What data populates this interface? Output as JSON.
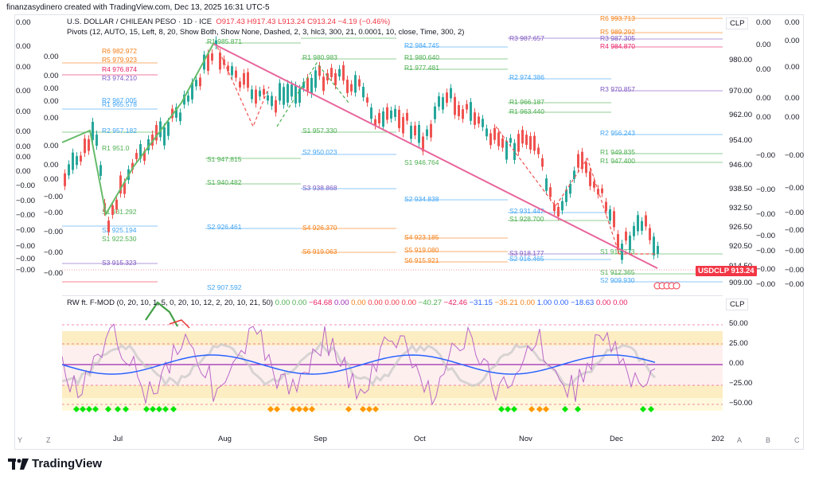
{
  "header": {
    "created": "finanzasydinero created with TradingView.com, Dec 13, 2025 16:31 UTC-5"
  },
  "symbol": {
    "title": "U.S. DOLLAR / CHILEAN PESO · 1D · ICE",
    "ohlc_open": "O917.43",
    "ohlc_high": "H917.43",
    "ohlc_low": "L913.24",
    "ohlc_close": "C913.24",
    "change": "−4.19 (−0.46%)",
    "indicator": "Pivots (12, AUTO, 15, Left, 8, 20, Show Both, Show None, Dashed, 2, 3, hlc3, 300, 21, 0.0001, 10, close, Time, 300, 2)",
    "currency": "CLP",
    "ticker_tag": "USDCLP",
    "last_price": "913.24"
  },
  "price_axis": [
    "980.00",
    "970.00",
    "962.00",
    "954.00",
    "946.00",
    "938.50",
    "932.50",
    "926.50",
    "920.50",
    "914.50",
    "909.00"
  ],
  "osc_axis": [
    "50.00",
    "25.00",
    "0.00",
    "−25.00",
    "−50.00"
  ],
  "osc_currency": "CLP",
  "oscillator": {
    "title": "RW ft. F-MOD (0, 20, 10, 1, 5, 0, 20, 10, 12, 2, 20, 10, 21, 50)",
    "values": [
      "0.00",
      "0.00",
      "−64.68",
      "0.00",
      "0.00",
      "0.00",
      "0.00",
      "0.00",
      "−40.27",
      "−42.46",
      "−31.15",
      "−35.21",
      "0.00",
      "1.00",
      "0.00",
      "−18.63",
      "0.00",
      "0.00"
    ]
  },
  "time_axis": [
    "Jul",
    "Aug",
    "Sep",
    "Oct",
    "Nov",
    "Dec",
    "202"
  ],
  "left_values": [
    "0.00",
    "0.00",
    "0.00",
    "0.00",
    "0.00",
    "0.00",
    "0.00",
    "0.00",
    "0.00",
    "−0.00",
    "−0.00",
    "−0.00",
    "−0.00",
    "−0.00",
    "−0.00",
    "−0.00"
  ],
  "left_values2": [
    "0.00",
    "0.00",
    "0.00",
    "0.00",
    "0.00",
    "0.00",
    "0.00",
    "0.00",
    "−0.00",
    "−0.00",
    "−0.00",
    "−0.00",
    "−0.00"
  ],
  "right_values": [
    "0.00",
    "0.00",
    "0.00",
    "0.00",
    "0.00",
    "−0.00",
    "−0.00",
    "−0.00",
    "−0.00",
    "−0.00",
    "−0.00",
    "−0.00",
    "−0.00"
  ],
  "right_values2": [
    "0.00",
    "0.00",
    "0.00",
    "0.00",
    "0.00",
    "−0.00",
    "−0.00",
    "−0.00",
    "−0.00",
    "−0.00",
    "−0.00",
    "−0.00"
  ],
  "bottom_buttons": [
    "Y",
    "Z",
    "A",
    "B",
    "C"
  ],
  "brand": "TradingView",
  "colors": {
    "up": "#26a69a",
    "down": "#ef5350",
    "trend": "#e8669c",
    "green": "#4caf50",
    "blue": "#2962ff"
  },
  "pivot_labels": [
    {
      "t": "R6",
      "v": "982.972",
      "c": "#f57f17"
    },
    {
      "t": "R5",
      "v": "979.923",
      "c": "#f57f17"
    },
    {
      "t": "R4",
      "v": "976.874",
      "c": "#e91e63"
    },
    {
      "t": "R3",
      "v": "974.210",
      "c": "#7e57c2"
    },
    {
      "t": "R2",
      "v": "967.005",
      "c": "#42a5f5"
    },
    {
      "t": "R1",
      "v": "965.578",
      "c": "#42a5f5"
    },
    {
      "t": "R2",
      "v": "957.182",
      "c": "#42a5f5"
    },
    {
      "t": "R1",
      "v": "951.0",
      "c": "#4caf50"
    },
    {
      "t": "S1",
      "v": "931.292",
      "c": "#4caf50"
    },
    {
      "t": "S2",
      "v": "925.194",
      "c": "#42a5f5"
    },
    {
      "t": "S1",
      "v": "922.530",
      "c": "#4caf50"
    },
    {
      "t": "S3",
      "v": "915.323",
      "c": "#7e57c2"
    },
    {
      "t": "R1",
      "v": "985.871",
      "c": "#4caf50"
    },
    {
      "t": "S1",
      "v": "947.815",
      "c": "#4caf50"
    },
    {
      "t": "S1",
      "v": "940.482",
      "c": "#4caf50"
    },
    {
      "t": "S2",
      "v": "926.461",
      "c": "#42a5f5"
    },
    {
      "t": "S2",
      "v": "907.592",
      "c": "#42a5f5"
    },
    {
      "t": "R1",
      "v": "980.983",
      "c": "#4caf50"
    },
    {
      "t": "S1",
      "v": "957.330",
      "c": "#4caf50"
    },
    {
      "t": "S2",
      "v": "950.023",
      "c": "#42a5f5"
    },
    {
      "t": "S3",
      "v": "938.868",
      "c": "#7e57c2"
    },
    {
      "t": "S4",
      "v": "926.370",
      "c": "#f57f17"
    },
    {
      "t": "S6",
      "v": "919.063",
      "c": "#f57f17"
    },
    {
      "t": "R2",
      "v": "984.745",
      "c": "#42a5f5"
    },
    {
      "t": "R1",
      "v": "980.640",
      "c": "#4caf50"
    },
    {
      "t": "R1",
      "v": "977.481",
      "c": "#4caf50"
    },
    {
      "t": "S1",
      "v": "946.764",
      "c": "#4caf50"
    },
    {
      "t": "S2",
      "v": "934.838",
      "c": "#42a5f5"
    },
    {
      "t": "S4",
      "v": "923.185",
      "c": "#f57f17"
    },
    {
      "t": "S5",
      "v": "919.080",
      "c": "#f57f17"
    },
    {
      "t": "S6",
      "v": "915.921",
      "c": "#f57f17"
    },
    {
      "t": "R3",
      "v": "987.657",
      "c": "#7e57c2"
    },
    {
      "t": "R2",
      "v": "974.386",
      "c": "#42a5f5"
    },
    {
      "t": "R1",
      "v": "966.187",
      "c": "#4caf50"
    },
    {
      "t": "R1",
      "v": "963.440",
      "c": "#4caf50"
    },
    {
      "t": "S2",
      "v": "931.447",
      "c": "#42a5f5"
    },
    {
      "t": "S1",
      "v": "928.700",
      "c": "#4caf50"
    },
    {
      "t": "S3",
      "v": "918.177",
      "c": "#7e57c2"
    },
    {
      "t": "S2",
      "v": "916.465",
      "c": "#42a5f5"
    },
    {
      "t": "R6",
      "v": "993.713",
      "c": "#f57f17"
    },
    {
      "t": "R5",
      "v": "989.292",
      "c": "#f57f17"
    },
    {
      "t": "R3",
      "v": "987.305",
      "c": "#7e57c2"
    },
    {
      "t": "R4",
      "v": "984.870",
      "c": "#e91e63"
    },
    {
      "t": "R3",
      "v": "970.857",
      "c": "#7e57c2"
    },
    {
      "t": "R2",
      "v": "956.243",
      "c": "#42a5f5"
    },
    {
      "t": "R1",
      "v": "949.835",
      "c": "#4caf50"
    },
    {
      "t": "R1",
      "v": "947.400",
      "c": "#4caf50"
    },
    {
      "t": "S1",
      "v": "918.773",
      "c": "#4caf50"
    },
    {
      "t": "S1",
      "v": "912.365",
      "c": "#4caf50"
    },
    {
      "t": "S2",
      "v": "909.930",
      "c": "#42a5f5"
    }
  ]
}
